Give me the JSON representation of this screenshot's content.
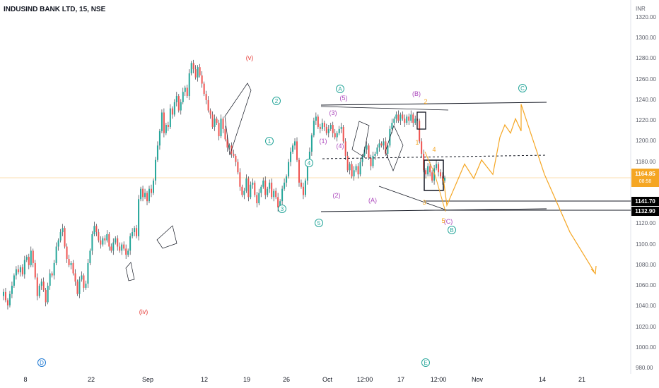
{
  "header": {
    "title": "INDUSIND BANK LTD, 15, NSE"
  },
  "chart_data": {
    "type": "line",
    "currency": "INR",
    "ylim": [
      980,
      1330
    ],
    "y_ticks": [
      "1320.00",
      "1300.00",
      "1280.00",
      "1260.00",
      "1240.00",
      "1220.00",
      "1200.00",
      "1180.00",
      "1160.00",
      "1140.00",
      "1120.00",
      "1100.00",
      "1080.00",
      "1060.00",
      "1040.00",
      "1020.00",
      "1000.00",
      "980.00"
    ],
    "x_ticks": [
      "8",
      "22",
      "Sep",
      "12",
      "19",
      "26",
      "Oct",
      "12:00",
      "17",
      "12:00",
      "Nov",
      "14",
      "21"
    ],
    "grid": false,
    "last_price": {
      "value": "1164.85",
      "timer": "08:58",
      "color": "#f5a623"
    },
    "price_tags": [
      {
        "value": "1141.70"
      },
      {
        "value": "1132.90"
      }
    ],
    "price_path": [
      1050,
      1054,
      1046,
      1041,
      1052,
      1060,
      1070,
      1076,
      1073,
      1078,
      1071,
      1085,
      1088,
      1080,
      1094,
      1082,
      1068,
      1050,
      1060,
      1064,
      1056,
      1044,
      1060,
      1072,
      1070,
      1082,
      1098,
      1104,
      1112,
      1116,
      1098,
      1086,
      1080,
      1082,
      1072,
      1064,
      1052,
      1066,
      1070,
      1058,
      1062,
      1082,
      1094,
      1110,
      1118,
      1112,
      1104,
      1100,
      1106,
      1104,
      1110,
      1098,
      1094,
      1102,
      1106,
      1098,
      1094,
      1100,
      1096,
      1090,
      1094,
      1108,
      1112,
      1116,
      1108,
      1144,
      1154,
      1146,
      1150,
      1142,
      1154,
      1150,
      1162,
      1182,
      1196,
      1210,
      1228,
      1208,
      1216,
      1214,
      1232,
      1226,
      1238,
      1244,
      1230,
      1238,
      1248,
      1252,
      1244,
      1266,
      1276,
      1270,
      1262,
      1272,
      1264,
      1256,
      1246,
      1240,
      1230,
      1226,
      1214,
      1222,
      1218,
      1205,
      1222,
      1212,
      1202,
      1194,
      1196,
      1188,
      1186,
      1180,
      1170,
      1156,
      1148,
      1152,
      1164,
      1146,
      1158,
      1160,
      1148,
      1140,
      1150,
      1156,
      1162,
      1148,
      1154,
      1160,
      1146,
      1152,
      1146,
      1136,
      1142,
      1154,
      1160,
      1166,
      1180,
      1190,
      1196,
      1200,
      1182,
      1160,
      1156,
      1148,
      1162,
      1178,
      1190,
      1206,
      1220,
      1224,
      1214,
      1212,
      1218,
      1214,
      1208,
      1212,
      1216,
      1208,
      1204,
      1208,
      1212,
      1214,
      1200,
      1186,
      1172,
      1178,
      1166,
      1172,
      1176,
      1168,
      1180,
      1186,
      1192,
      1196,
      1184,
      1176,
      1186,
      1188,
      1194,
      1198,
      1196,
      1200,
      1188,
      1196,
      1212,
      1218,
      1222,
      1226,
      1220,
      1226,
      1222,
      1218,
      1224,
      1220,
      1226,
      1218,
      1222,
      1220,
      1200,
      1188,
      1172,
      1168,
      1176,
      1170,
      1162,
      1174,
      1178,
      1170,
      1166,
      1162,
      1164.85
    ],
    "projections": {
      "main_path": [
        1164,
        1138,
        1178,
        1164,
        1182,
        1168,
        1204,
        1216,
        1208,
        1222,
        1210,
        1236,
        1168,
        1112,
        1074
      ],
      "second_path": [
        1190,
        1168,
        1132
      ]
    },
    "annotations": [
      {
        "text": "(v)",
        "color": "#e53935"
      },
      {
        "text": "(iv)",
        "color": "#e53935"
      },
      {
        "text": "D",
        "color": "#1976d2"
      },
      {
        "text": "E",
        "color": "#26a69a"
      },
      {
        "text": "1",
        "color": "#26a69a"
      },
      {
        "text": "2",
        "color": "#26a69a"
      },
      {
        "text": "3",
        "color": "#26a69a"
      },
      {
        "text": "4",
        "color": "#26a69a"
      },
      {
        "text": "5",
        "color": "#26a69a"
      },
      {
        "text": "A",
        "color": "#26a69a"
      },
      {
        "text": "B",
        "color": "#26a69a"
      },
      {
        "text": "C",
        "color": "#26a69a"
      },
      {
        "text": "(1)",
        "color": "#ab47bc"
      },
      {
        "text": "(2)",
        "color": "#ab47bc"
      },
      {
        "text": "(3)",
        "color": "#ab47bc"
      },
      {
        "text": "(4)",
        "color": "#ab47bc"
      },
      {
        "text": "(5)",
        "color": "#ab47bc"
      },
      {
        "text": "(A)",
        "color": "#ab47bc"
      },
      {
        "text": "(B)",
        "color": "#ab47bc"
      },
      {
        "text": "(C)",
        "color": "#ab47bc"
      },
      {
        "text": "1",
        "color": "#f5a623"
      },
      {
        "text": "2",
        "color": "#f5a623"
      },
      {
        "text": "3",
        "color": "#f5a623"
      },
      {
        "text": "4",
        "color": "#f5a623"
      },
      {
        "text": "5",
        "color": "#f5a623"
      }
    ]
  }
}
